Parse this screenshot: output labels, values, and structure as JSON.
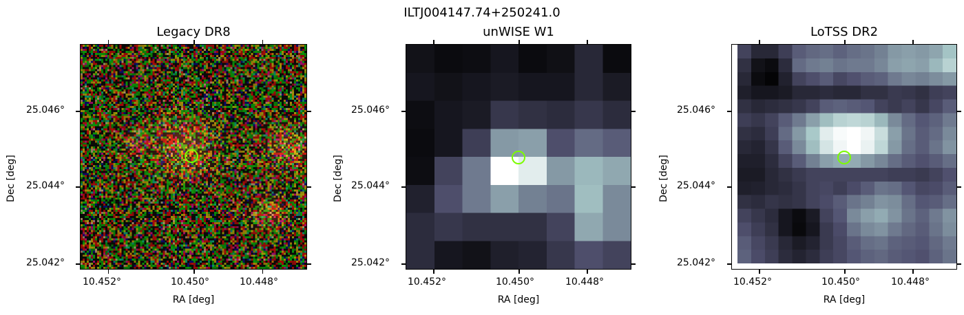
{
  "figure_title": "ILTJ004147.74+250241.0",
  "panels": [
    {
      "title": "Legacy DR8",
      "x_label": "RA [deg]",
      "y_label": "Dec [deg]",
      "x_ticks": [
        "10.452°",
        "10.450°",
        "10.448°"
      ],
      "y_ticks": [
        "25.046°",
        "25.044°",
        "25.042°"
      ],
      "image_kind": "rgb-noise",
      "marker_color": "#7cfc00"
    },
    {
      "title": "unWISE W1",
      "x_label": "RA [deg]",
      "y_label": "Dec [deg]",
      "x_ticks": [
        "10.452°",
        "10.450°",
        "10.448°"
      ],
      "y_ticks": [
        "25.046°",
        "25.044°",
        "25.042°"
      ],
      "image_kind": "bone-colormap",
      "marker_color": "#7cfc00"
    },
    {
      "title": "LoTSS DR2",
      "x_label": "RA [deg]",
      "y_label": "Dec [deg]",
      "x_ticks": [
        "10.452°",
        "10.450°",
        "10.448°"
      ],
      "y_ticks": [
        "25.046°",
        "25.044°",
        "25.042°"
      ],
      "image_kind": "bone-colormap",
      "marker_color": "#7cfc00"
    }
  ]
}
